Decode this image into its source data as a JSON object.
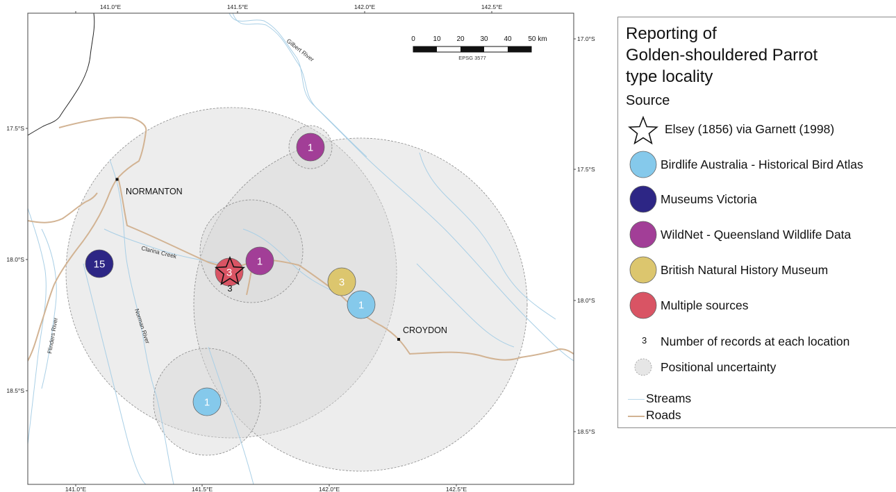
{
  "map": {
    "ticks_top": [
      "141.0°E",
      "141.5°E",
      "142.0°E",
      "142.5°E"
    ],
    "ticks_bottom": [
      "141.0°E",
      "141.5°E",
      "142.0°E",
      "142.5°E"
    ],
    "ticks_left": [
      "17.5°S",
      "18.0°S",
      "18.5°S"
    ],
    "ticks_right": [
      "17.0°S",
      "17.5°S",
      "18.0°S",
      "18.5°S"
    ],
    "towns": [
      {
        "name": "NORMANTON"
      },
      {
        "name": "CROYDON"
      }
    ],
    "rivers": [
      {
        "name": "Gilbert River"
      },
      {
        "name": "Clarina Creek"
      },
      {
        "name": "Norman River"
      },
      {
        "name": "Flinders River"
      }
    ],
    "scalebar": {
      "labels": [
        "0",
        "10",
        "20",
        "30",
        "40",
        "50 km"
      ],
      "projection": "EPSG 3577"
    },
    "records": [
      {
        "source": "museums_victoria",
        "count": "15"
      },
      {
        "source": "wildnet",
        "count": "1"
      },
      {
        "source": "multiple",
        "count": "3"
      },
      {
        "source": "wildnet",
        "count": "1"
      },
      {
        "source": "british_museum",
        "count": "3"
      },
      {
        "source": "birdlife",
        "count": "1"
      },
      {
        "source": "birdlife",
        "count": "1"
      }
    ],
    "type_locality_count": "3"
  },
  "legend": {
    "title_lines": [
      "Reporting of",
      "Golden-shouldered Parrot",
      "type locality"
    ],
    "section": "Source",
    "items": [
      {
        "key": "elsey",
        "label": "Elsey (1856) via Garnett (1998)",
        "symbol": "star-icon"
      },
      {
        "key": "birdlife",
        "label": "Birdlife Australia - Historical Bird Atlas",
        "color": "#85c9eb"
      },
      {
        "key": "museums_victoria",
        "label": "Museums Victoria",
        "color": "#2d2685"
      },
      {
        "key": "wildnet",
        "label": "WildNet - Queensland Wildlife Data",
        "color": "#a23e97"
      },
      {
        "key": "british_museum",
        "label": "British Natural History Museum",
        "color": "#dcc66e"
      },
      {
        "key": "multiple",
        "label": "Multiple sources",
        "color": "#d95464"
      }
    ],
    "count_example": "3",
    "count_label": "Number of records at each location",
    "uncertainty_label": "Positional uncertainty",
    "streams_label": "Streams",
    "roads_label": "Roads",
    "colors": {
      "streams": "#b9d8ea",
      "roads": "#d2b393",
      "uncertainty_fill": "#e6e6e6",
      "uncertainty_stroke": "#9a9a9a"
    }
  }
}
